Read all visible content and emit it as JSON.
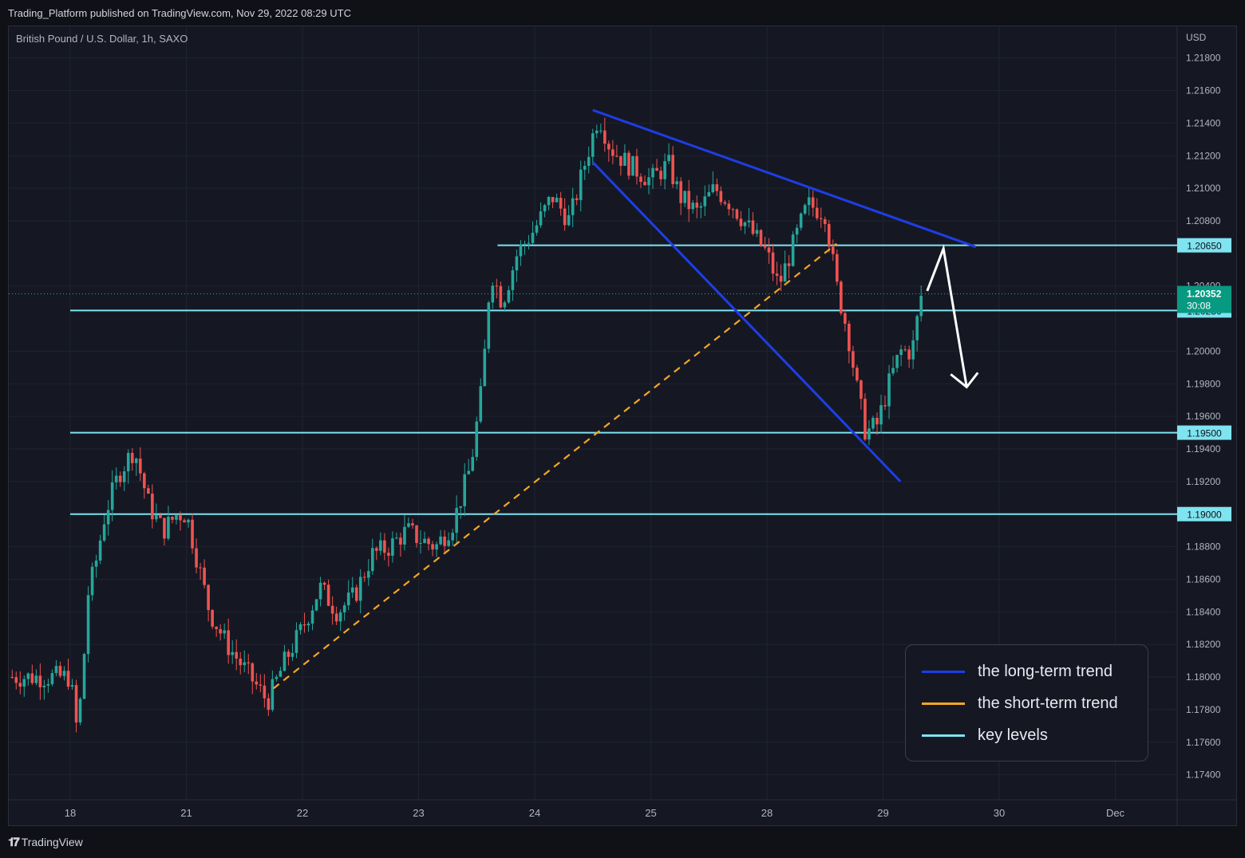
{
  "header": {
    "published": "Trading_Platform published on TradingView.com, Nov 29, 2022 08:29 UTC"
  },
  "symbol_line": "British Pound / U.S. Dollar, 1h, SAXO",
  "footer": {
    "brand": "TradingView"
  },
  "colors": {
    "background": "#151823",
    "up": "#26a69a",
    "down": "#ef5350",
    "long_trend": "#1e3ee6",
    "short_trend": "#f5a623",
    "key_level": "#7fe3f0",
    "arrow": "#ffffff",
    "grid": "#1f2330",
    "axis_text": "#b2b5be"
  },
  "chart_data": {
    "type": "candlestick",
    "title": "British Pound / U.S. Dollar, 1h, SAXO",
    "currency_label": "USD",
    "ylim": [
      1.173,
      1.2195
    ],
    "y_ticks": [
      "1.21800",
      "1.21600",
      "1.21400",
      "1.21200",
      "1.21000",
      "1.20800",
      "1.20400",
      "1.20000",
      "1.19800",
      "1.19600",
      "1.19400",
      "1.19200",
      "1.18800",
      "1.18600",
      "1.18400",
      "1.18200",
      "1.18000",
      "1.17800",
      "1.17600",
      "1.17400"
    ],
    "x_ticks": [
      "18",
      "21",
      "22",
      "23",
      "24",
      "25",
      "28",
      "29",
      "30",
      "Dec"
    ],
    "price_series": [
      {
        "t": 0.0,
        "price": 1.18
      },
      {
        "t": 0.05,
        "price": 1.177
      },
      {
        "t": 0.1,
        "price": 1.179
      },
      {
        "t": 0.15,
        "price": 1.185
      },
      {
        "t": 0.22,
        "price": 1.187
      },
      {
        "t": 0.3,
        "price": 1.19
      },
      {
        "t": 0.42,
        "price": 1.1925
      },
      {
        "t": 0.55,
        "price": 1.194
      },
      {
        "t": 0.68,
        "price": 1.1905
      },
      {
        "t": 0.8,
        "price": 1.189
      },
      {
        "t": 0.92,
        "price": 1.19
      },
      {
        "t": 1.0,
        "price": 1.19
      },
      {
        "t": 1.1,
        "price": 1.187
      },
      {
        "t": 1.2,
        "price": 1.184
      },
      {
        "t": 1.35,
        "price": 1.182
      },
      {
        "t": 1.55,
        "price": 1.18
      },
      {
        "t": 1.7,
        "price": 1.1785
      },
      {
        "t": 1.85,
        "price": 1.181
      },
      {
        "t": 2.0,
        "price": 1.183
      },
      {
        "t": 2.15,
        "price": 1.1855
      },
      {
        "t": 2.3,
        "price": 1.184
      },
      {
        "t": 2.45,
        "price": 1.185
      },
      {
        "t": 2.6,
        "price": 1.1875
      },
      {
        "t": 2.75,
        "price": 1.188
      },
      {
        "t": 2.9,
        "price": 1.189
      },
      {
        "t": 3.0,
        "price": 1.1885
      },
      {
        "t": 3.15,
        "price": 1.188
      },
      {
        "t": 3.3,
        "price": 1.1895
      },
      {
        "t": 3.45,
        "price": 1.193
      },
      {
        "t": 3.55,
        "price": 1.198
      },
      {
        "t": 3.62,
        "price": 1.205
      },
      {
        "t": 3.72,
        "price": 1.203
      },
      {
        "t": 3.85,
        "price": 1.206
      },
      {
        "t": 4.0,
        "price": 1.2075
      },
      {
        "t": 4.15,
        "price": 1.2095
      },
      {
        "t": 4.3,
        "price": 1.208
      },
      {
        "t": 4.45,
        "price": 1.212
      },
      {
        "t": 4.55,
        "price": 1.2145
      },
      {
        "t": 4.65,
        "price": 1.2125
      },
      {
        "t": 4.8,
        "price": 1.2115
      },
      {
        "t": 5.0,
        "price": 1.2105
      },
      {
        "t": 5.15,
        "price": 1.2115
      },
      {
        "t": 5.25,
        "price": 1.2095
      },
      {
        "t": 5.4,
        "price": 1.2085
      },
      {
        "t": 5.55,
        "price": 1.21
      },
      {
        "t": 5.7,
        "price": 1.209
      },
      {
        "t": 5.85,
        "price": 1.2075
      },
      {
        "t": 6.0,
        "price": 1.206
      },
      {
        "t": 6.1,
        "price": 1.204
      },
      {
        "t": 6.2,
        "price": 1.206
      },
      {
        "t": 6.35,
        "price": 1.209
      },
      {
        "t": 6.5,
        "price": 1.2085
      },
      {
        "t": 6.6,
        "price": 1.204
      },
      {
        "t": 6.7,
        "price": 1.201
      },
      {
        "t": 6.78,
        "price": 1.1975
      },
      {
        "t": 6.85,
        "price": 1.195
      },
      {
        "t": 6.95,
        "price": 1.1955
      },
      {
        "t": 7.05,
        "price": 1.198
      },
      {
        "t": 7.15,
        "price": 1.2
      },
      {
        "t": 7.25,
        "price": 1.2
      },
      {
        "t": 7.33,
        "price": 1.2035
      }
    ],
    "trendlines": [
      {
        "kind": "long-term",
        "points": [
          [
            4.5,
            1.2148
          ],
          [
            7.8,
            1.2064
          ]
        ]
      },
      {
        "kind": "long-term",
        "points": [
          [
            4.5,
            1.2116
          ],
          [
            7.15,
            1.192
          ]
        ]
      },
      {
        "kind": "short-term",
        "points": [
          [
            1.75,
            1.1793
          ],
          [
            6.6,
            1.2066
          ]
        ],
        "dashed": true
      }
    ],
    "key_levels": [
      {
        "value": 1.2065,
        "label": "1.20650",
        "x_start": 3.68
      },
      {
        "value": 1.2025,
        "label": "1.20250",
        "x_start": 0.0
      },
      {
        "value": 1.195,
        "label": "1.19500",
        "x_start": 0.0
      },
      {
        "value": 1.19,
        "label": "1.19000",
        "x_start": 0.0
      }
    ],
    "projection_arrow": [
      [
        7.38,
        1.2037
      ],
      [
        7.52,
        1.2063
      ],
      [
        7.72,
        1.1978
      ]
    ],
    "last_price": {
      "value": 1.20352,
      "label": "1.20352",
      "countdown": "30:08"
    },
    "legend": [
      {
        "label": "the long-term trend",
        "color": "#1e3ee6"
      },
      {
        "label": "the short-term trend",
        "color": "#f5a623"
      },
      {
        "label": "key levels",
        "color": "#7fe3f0"
      }
    ]
  }
}
